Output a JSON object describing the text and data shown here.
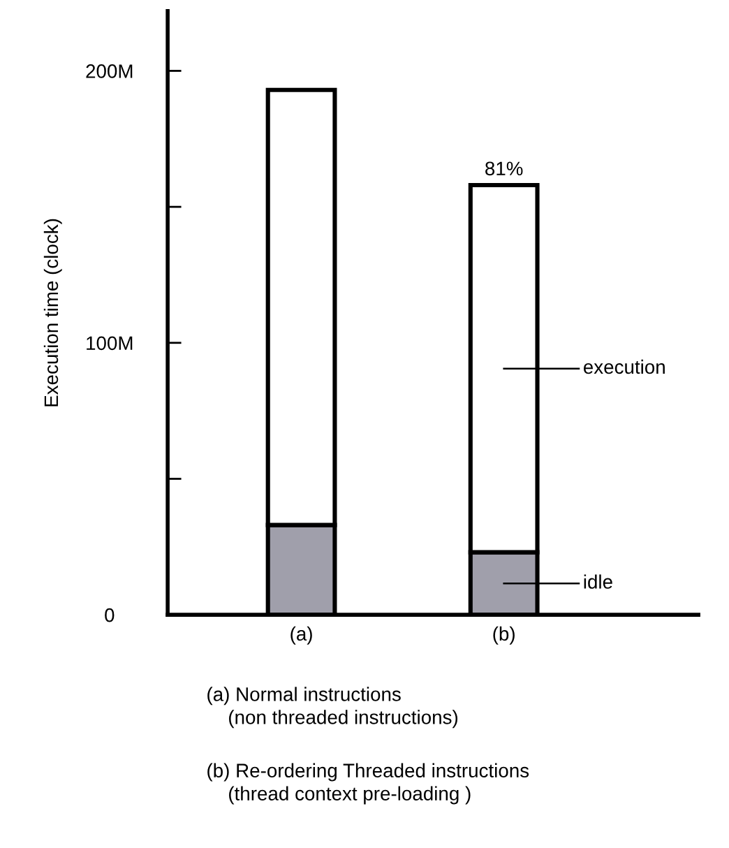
{
  "chart_data": {
    "type": "bar",
    "stacked": true,
    "ylabel": "Execution time (clock)",
    "categories": [
      "(a)",
      "(b)"
    ],
    "series": [
      {
        "name": "idle",
        "color": "#a09fab",
        "values": [
          33,
          23
        ]
      },
      {
        "name": "execution",
        "color": "#ffffff",
        "values": [
          160,
          135
        ]
      }
    ],
    "ylim": [
      0,
      222
    ],
    "yticks": [
      {
        "value": 0,
        "label": "0"
      },
      {
        "value": 50,
        "label": null
      },
      {
        "value": 100,
        "label": "100M"
      },
      {
        "value": 150,
        "label": null
      },
      {
        "value": 200,
        "label": "200M"
      }
    ],
    "grid": false,
    "legend": "right",
    "annotations": [
      {
        "text": "81%",
        "x": "(b)",
        "y": 158
      },
      "(a) Normal instructions\n    (non threaded instructions)",
      "(b) Re-ordering Threaded instructions\n    (thread context pre-loading )"
    ]
  }
}
